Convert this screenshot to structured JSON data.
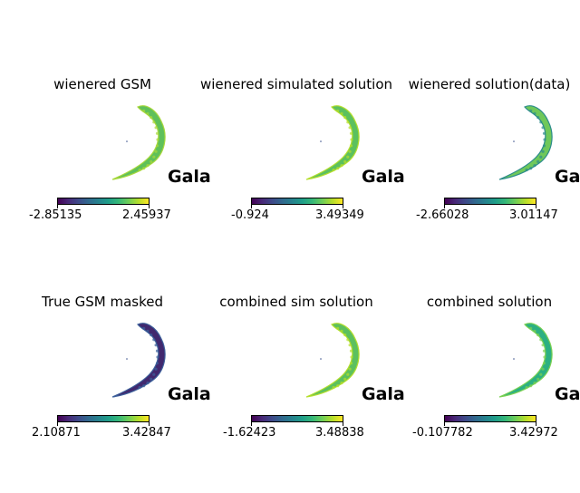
{
  "chart_data": [
    {
      "type": "heatmap",
      "title": "wienered GSM",
      "annotation": "Gala",
      "colorbar": {
        "min_label": "-2.85135",
        "max_label": "2.45937",
        "min": -2.85135,
        "max": 2.45937,
        "colormap": "viridis"
      },
      "fill": "#5fc05a",
      "accent": "#a8d83a"
    },
    {
      "type": "heatmap",
      "title": "wienered simulated solution",
      "annotation": "Gala",
      "colorbar": {
        "min_label": "-0.924",
        "max_label": "3.49349",
        "min": -0.924,
        "max": 3.49349,
        "colormap": "viridis"
      },
      "fill": "#5cc05e",
      "accent": "#b5de2b"
    },
    {
      "type": "heatmap",
      "title": "wienered solution(data)",
      "annotation": "Gala",
      "colorbar": {
        "min_label": "-2.66028",
        "max_label": "3.01147",
        "min": -2.66028,
        "max": 3.01147,
        "colormap": "viridis"
      },
      "fill": "#6fc85a",
      "accent": "#2c8c8c"
    },
    {
      "type": "heatmap",
      "title": "True GSM masked",
      "annotation": "Gala",
      "colorbar": {
        "min_label": "2.10871",
        "max_label": "3.42847",
        "min": 2.10871,
        "max": 3.42847,
        "colormap": "viridis"
      },
      "fill": "#41286e",
      "accent": "#3b5f9a"
    },
    {
      "type": "heatmap",
      "title": "combined sim solution",
      "annotation": "Gala",
      "colorbar": {
        "min_label": "-1.62423",
        "max_label": "3.48838",
        "min": -1.62423,
        "max": 3.48838,
        "colormap": "viridis"
      },
      "fill": "#5cc05e",
      "accent": "#b5de2b"
    },
    {
      "type": "heatmap",
      "title": "combined solution",
      "annotation": "Gala",
      "colorbar": {
        "min_label": "-0.107782",
        "max_label": "3.42972",
        "min": -0.107782,
        "max": 3.42972,
        "colormap": "viridis"
      },
      "fill": "#2cb082",
      "accent": "#7ad151"
    }
  ]
}
